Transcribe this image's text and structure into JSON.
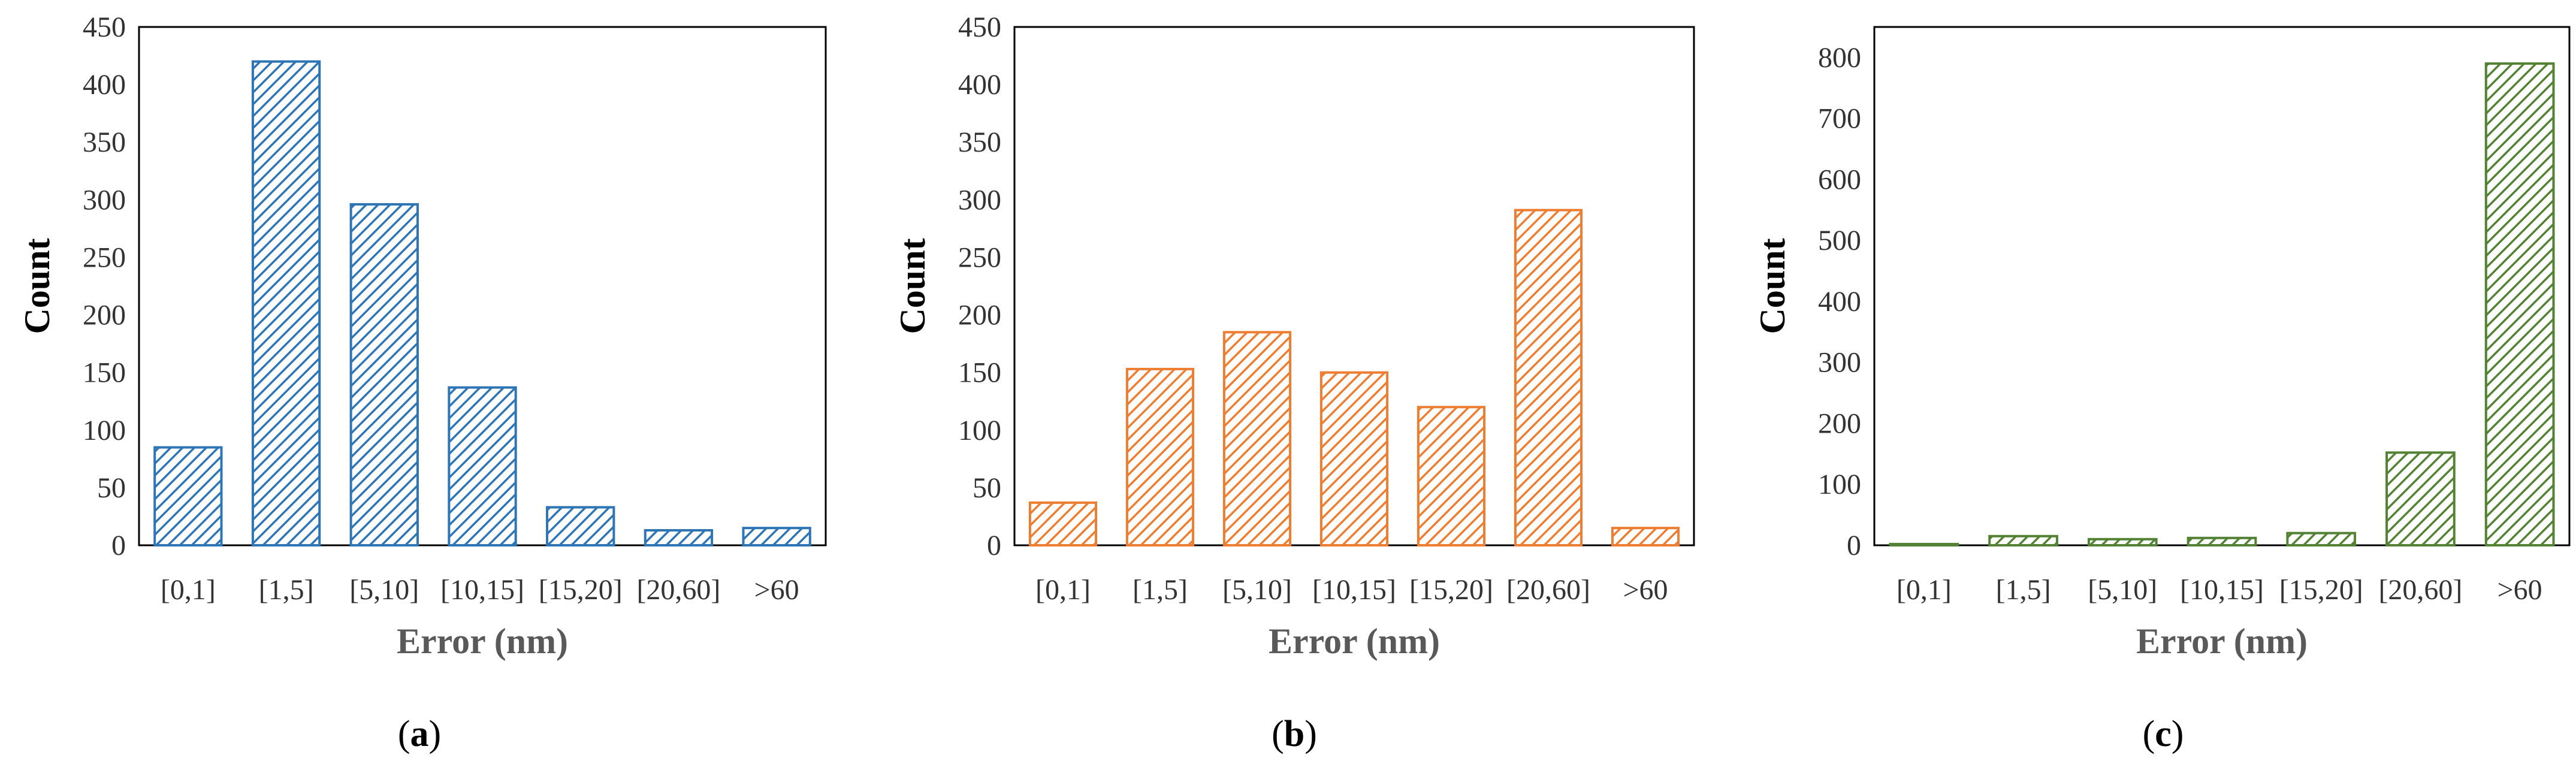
{
  "chart_data": [
    {
      "type": "bar",
      "panel_label": "a",
      "categories": [
        "[0,1]",
        "[1,5]",
        "[5,10]",
        "[10,15]",
        "[15,20]",
        "[20,60]",
        ">60"
      ],
      "values": [
        85,
        420,
        296,
        137,
        33,
        13,
        15
      ],
      "xlabel": "Error (nm)",
      "ylabel": "Count",
      "ylim": [
        0,
        450
      ],
      "yticks": [
        0,
        50,
        100,
        150,
        200,
        250,
        300,
        350,
        400,
        450
      ],
      "color": "#2E75B6",
      "fill": "diagonal-hatch",
      "grid": false
    },
    {
      "type": "bar",
      "panel_label": "b",
      "categories": [
        "[0,1]",
        "[1,5]",
        "[5,10]",
        "[10,15]",
        "[15,20]",
        "[20,60]",
        ">60"
      ],
      "values": [
        37,
        153,
        185,
        150,
        120,
        291,
        15
      ],
      "xlabel": "Error (nm)",
      "ylabel": "Count",
      "ylim": [
        0,
        450
      ],
      "yticks": [
        0,
        50,
        100,
        150,
        200,
        250,
        300,
        350,
        400,
        450
      ],
      "color": "#ED7D31",
      "fill": "diagonal-hatch",
      "grid": false
    },
    {
      "type": "bar",
      "panel_label": "c",
      "categories": [
        "[0,1]",
        "[1,5]",
        "[5,10]",
        "[10,15]",
        "[15,20]",
        "[20,60]",
        ">60"
      ],
      "values": [
        2,
        15,
        10,
        12,
        20,
        152,
        790
      ],
      "xlabel": "Error (nm)",
      "ylabel": "Count",
      "ylim": [
        0,
        850
      ],
      "yticks": [
        0,
        100,
        200,
        300,
        400,
        500,
        600,
        700,
        800
      ],
      "color": "#548235",
      "fill": "diagonal-hatch",
      "grid": false
    }
  ]
}
